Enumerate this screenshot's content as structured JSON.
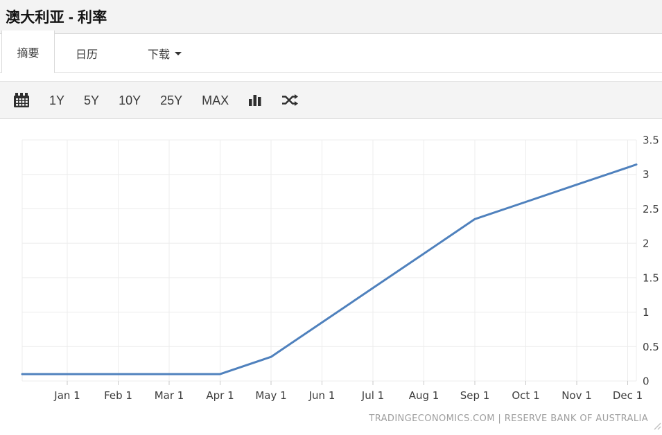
{
  "page": {
    "title": "澳大利亚 - 利率"
  },
  "tabs": [
    {
      "label": "摘要",
      "active": true
    },
    {
      "label": "日历",
      "active": false
    },
    {
      "label": "下载",
      "active": false,
      "has_caret": true
    }
  ],
  "toolbar": {
    "ranges": [
      "1Y",
      "5Y",
      "10Y",
      "25Y",
      "MAX"
    ],
    "icons": [
      "calendar-icon",
      "bar-chart-icon",
      "shuffle-icon"
    ]
  },
  "chart_data": {
    "type": "line",
    "title": "澳大利亚 - 利率",
    "x": [
      "Jan 1",
      "Feb 1",
      "Mar 1",
      "Apr 1",
      "May 1",
      "Jun 1",
      "Jul 1",
      "Aug 1",
      "Sep 1",
      "Oct 1",
      "Nov 1",
      "Dec 1"
    ],
    "values": [
      0.1,
      0.1,
      0.1,
      0.1,
      0.35,
      0.85,
      1.35,
      1.85,
      2.35,
      2.6,
      2.85,
      3.1
    ],
    "ylim": [
      0,
      3.5
    ],
    "ytick_step": 0.5,
    "grid": true,
    "legend": "none",
    "line_color": "#4f81bd",
    "grid_color": "#ececec",
    "tick_color": "#c9c9c9",
    "label_color": "#3d3d3d",
    "attribution": "TRADINGECONOMICS.COM | RESERVE BANK OF AUSTRALIA"
  }
}
